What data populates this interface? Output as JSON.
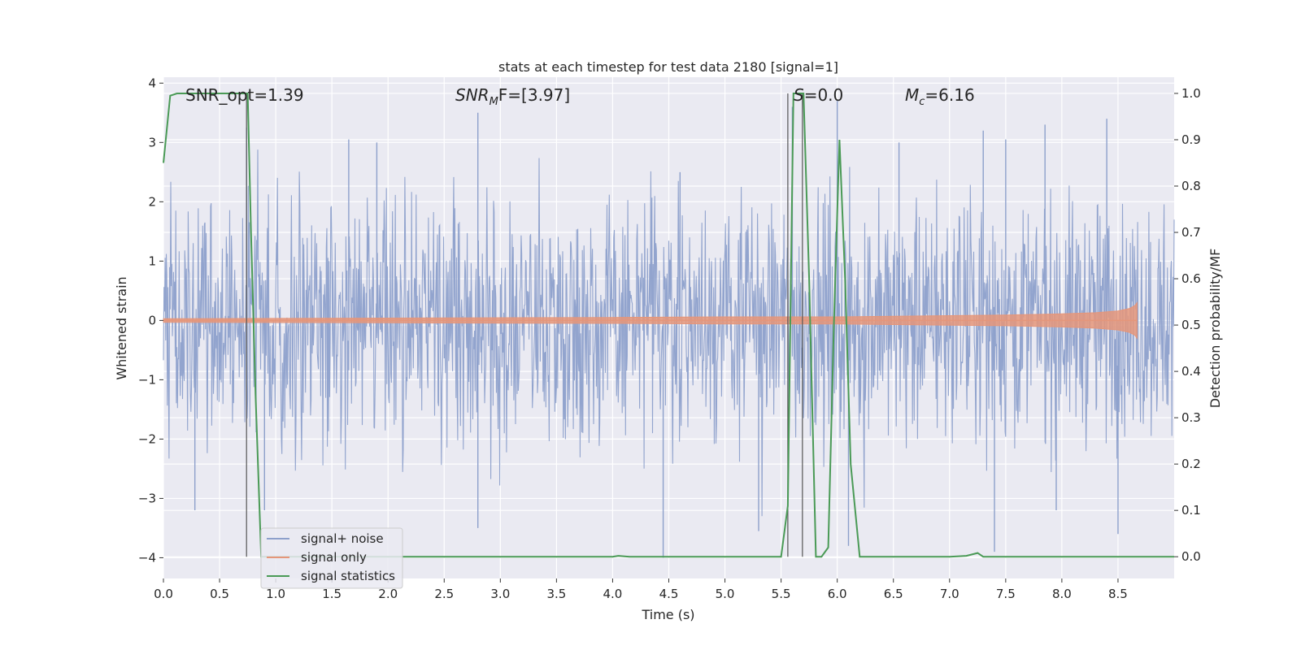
{
  "chart_data": {
    "type": "line",
    "title": "stats at each timestep for test data 2180 [signal=1]",
    "xlabel": "Time (s)",
    "ylabel_left": "Whitened strain",
    "ylabel_right": "Detection probability/MF",
    "xlim": [
      0,
      9.0
    ],
    "ylim_left": [
      -4.35,
      4.1
    ],
    "ylim_right": [
      -0.047,
      1.035
    ],
    "x_ticks": [
      0.0,
      0.5,
      1.0,
      1.5,
      2.0,
      2.5,
      3.0,
      3.5,
      4.0,
      4.5,
      5.0,
      5.5,
      6.0,
      6.5,
      7.0,
      7.5,
      8.0,
      8.5
    ],
    "x_tick_labels": [
      "0.0",
      "0.5",
      "1.0",
      "1.5",
      "2.0",
      "2.5",
      "3.0",
      "3.5",
      "4.0",
      "4.5",
      "5.0",
      "5.5",
      "6.0",
      "6.5",
      "7.0",
      "7.5",
      "8.0",
      "8.5"
    ],
    "y_left_ticks": [
      -4,
      -3,
      -2,
      -1,
      0,
      1,
      2,
      3,
      4
    ],
    "y_left_tick_labels": [
      "−4",
      "−3",
      "−2",
      "−1",
      "0",
      "1",
      "2",
      "3",
      "4"
    ],
    "y_right_ticks": [
      0.0,
      0.1,
      0.2,
      0.3,
      0.4,
      0.5,
      0.6,
      0.7,
      0.8,
      0.9,
      1.0
    ],
    "y_right_tick_labels": [
      "0.0",
      "0.1",
      "0.2",
      "0.3",
      "0.4",
      "0.5",
      "0.6",
      "0.7",
      "0.8",
      "0.9",
      "1.0"
    ],
    "grid": true,
    "legend_position": "lower-left",
    "annotations": {
      "snr_opt": "SNR_opt=1.39",
      "snr_mf_prefix": "SNR",
      "snr_mf_sub": "M",
      "snr_mf_suffix": "F=[3.97]",
      "s_label": "S",
      "s_value": "=0.0",
      "mc_prefix": "M",
      "mc_sub": "c",
      "mc_value": "=6.16"
    },
    "vertical_lines_x": [
      0.74,
      5.56,
      5.69
    ],
    "series": [
      {
        "name": "signal+ noise",
        "axis": "left",
        "color": "#8da0cb",
        "description": "noise band, approx ±1.3 typical with spikes to ±3.5",
        "spikes_up": [
          [
            0.74,
            3.25
          ],
          [
            1.65,
            3.05
          ],
          [
            1.9,
            3.0
          ],
          [
            2.8,
            3.5
          ],
          [
            4.6,
            2.5
          ],
          [
            5.6,
            3.6
          ],
          [
            6.0,
            3.7
          ],
          [
            6.55,
            3.0
          ],
          [
            7.3,
            3.2
          ],
          [
            7.5,
            3.05
          ],
          [
            7.85,
            3.3
          ],
          [
            8.4,
            3.4
          ]
        ],
        "spikes_down": [
          [
            0.28,
            -3.2
          ],
          [
            0.9,
            -3.2
          ],
          [
            2.8,
            -3.5
          ],
          [
            4.45,
            -4.0
          ],
          [
            5.3,
            -3.55
          ],
          [
            6.1,
            -3.8
          ],
          [
            7.4,
            -3.9
          ],
          [
            7.95,
            -3.2
          ],
          [
            8.5,
            -3.6
          ]
        ]
      },
      {
        "name": "signal only",
        "axis": "left",
        "color": "#e5967a",
        "x": [
          0,
          2,
          4,
          5,
          6,
          6.5,
          7,
          7.5,
          8,
          8.3,
          8.5,
          8.6,
          8.65,
          8.67
        ],
        "amplitude": [
          0.03,
          0.04,
          0.05,
          0.06,
          0.06,
          0.07,
          0.08,
          0.09,
          0.11,
          0.13,
          0.16,
          0.2,
          0.25,
          0.3
        ]
      },
      {
        "name": "signal statistics",
        "axis": "right",
        "color": "#4a9a56",
        "x": [
          0.0,
          0.06,
          0.12,
          0.2,
          0.3,
          0.5,
          0.6,
          0.72,
          0.75,
          0.78,
          0.82,
          0.87,
          0.95,
          1.5,
          2.0,
          3.0,
          4.0,
          4.05,
          4.15,
          5.0,
          5.5,
          5.56,
          5.61,
          5.65,
          5.7,
          5.75,
          5.81,
          5.86,
          5.92,
          5.97,
          6.02,
          6.07,
          6.12,
          6.2,
          6.25,
          7.0,
          7.15,
          7.25,
          7.3,
          7.4,
          8.0,
          9.0
        ],
        "values": [
          0.85,
          0.995,
          1.0,
          1.0,
          1.0,
          1.0,
          1.0,
          1.0,
          1.0,
          0.7,
          0.35,
          0.0,
          0.0,
          0.0,
          0.0,
          0.0,
          0.0,
          0.002,
          0.0,
          0.0,
          0.0,
          0.11,
          1.0,
          1.0,
          1.0,
          0.6,
          0.0,
          0.0,
          0.02,
          0.5,
          0.9,
          0.6,
          0.2,
          0.0,
          0.0,
          0.0,
          0.002,
          0.008,
          0.0,
          0.0,
          0.0,
          0.0
        ]
      }
    ]
  }
}
